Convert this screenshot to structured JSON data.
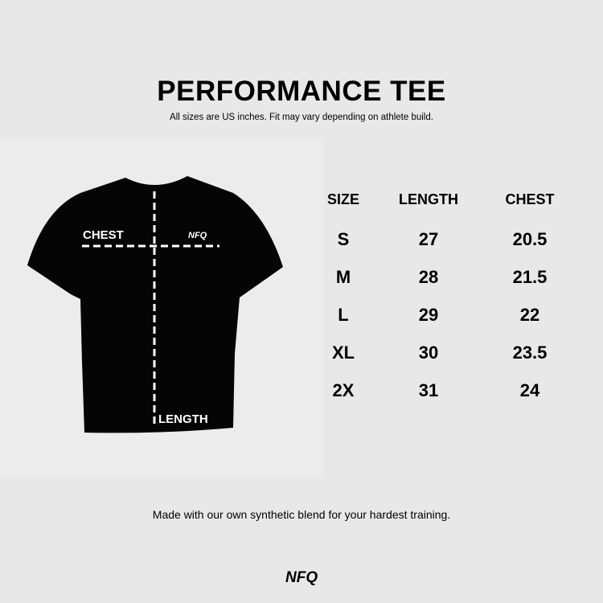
{
  "header": {
    "title": "PERFORMANCE TEE",
    "subtitle": "All sizes are US inches. Fit may vary depending on athlete build."
  },
  "diagram": {
    "chest_label": "CHEST",
    "length_label": "LENGTH",
    "brand_logo": "NFQ"
  },
  "size_table": {
    "columns": [
      "SIZE",
      "LENGTH",
      "CHEST"
    ],
    "rows": [
      [
        "S",
        "27",
        "20.5"
      ],
      [
        "M",
        "28",
        "21.5"
      ],
      [
        "L",
        "29",
        "22"
      ],
      [
        "XL",
        "30",
        "23.5"
      ],
      [
        "2X",
        "31",
        "24"
      ]
    ]
  },
  "footer": {
    "text": "Made with our own synthetic blend for your hardest training.",
    "logo": "NFQ"
  },
  "colors": {
    "background": "#e8e8e8",
    "shirt": "#050505",
    "text": "#000000"
  }
}
